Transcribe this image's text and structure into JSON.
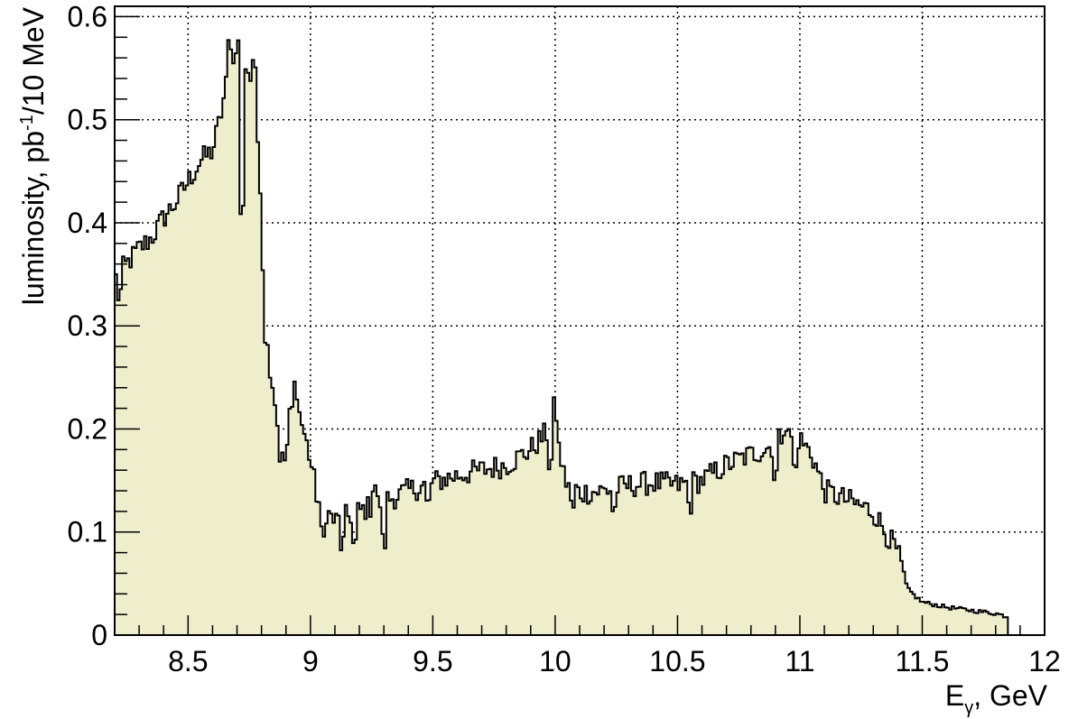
{
  "chart_data": {
    "type": "histogram",
    "xlabel": "E",
    "xlabel_sub": "γ",
    "xlabel_suffix": ", GeV",
    "ylabel_pre": "luminosity, pb",
    "ylabel_sup": "-1",
    "ylabel_post": "/10 MeV",
    "xlim": [
      8.2,
      12.0
    ],
    "ylim": [
      0,
      0.61
    ],
    "grid": true,
    "bin_width": 0.01,
    "fill_color": "#eeeecc",
    "line_color": "#000000",
    "x_ticks": [
      {
        "v": 8.5,
        "label": "8.5"
      },
      {
        "v": 9.0,
        "label": "9"
      },
      {
        "v": 9.5,
        "label": "9.5"
      },
      {
        "v": 10.0,
        "label": "10"
      },
      {
        "v": 10.5,
        "label": "10.5"
      },
      {
        "v": 11.0,
        "label": "11"
      },
      {
        "v": 11.5,
        "label": "11.5"
      },
      {
        "v": 12.0,
        "label": "12"
      }
    ],
    "y_ticks": [
      {
        "v": 0.0,
        "label": "0"
      },
      {
        "v": 0.1,
        "label": "0.1"
      },
      {
        "v": 0.2,
        "label": "0.2"
      },
      {
        "v": 0.3,
        "label": "0.3"
      },
      {
        "v": 0.4,
        "label": "0.4"
      },
      {
        "v": 0.5,
        "label": "0.5"
      },
      {
        "v": 0.6,
        "label": "0.6"
      }
    ],
    "shape": [
      [
        8.2,
        0.345
      ],
      [
        8.25,
        0.36
      ],
      [
        8.3,
        0.375
      ],
      [
        8.35,
        0.385
      ],
      [
        8.4,
        0.405
      ],
      [
        8.45,
        0.42
      ],
      [
        8.5,
        0.44
      ],
      [
        8.55,
        0.46
      ],
      [
        8.6,
        0.47
      ],
      [
        8.63,
        0.5
      ],
      [
        8.66,
        0.54
      ],
      [
        8.69,
        0.555
      ],
      [
        8.72,
        0.55
      ],
      [
        8.75,
        0.56
      ],
      [
        8.78,
        0.5
      ],
      [
        8.8,
        0.42
      ],
      [
        8.81,
        0.3
      ],
      [
        8.83,
        0.27
      ],
      [
        8.86,
        0.22
      ],
      [
        8.88,
        0.16
      ],
      [
        8.9,
        0.2
      ],
      [
        8.94,
        0.23
      ],
      [
        8.97,
        0.2
      ],
      [
        9.0,
        0.17
      ],
      [
        9.03,
        0.13
      ],
      [
        9.1,
        0.11
      ],
      [
        9.2,
        0.12
      ],
      [
        9.3,
        0.13
      ],
      [
        9.4,
        0.14
      ],
      [
        9.5,
        0.148
      ],
      [
        9.6,
        0.155
      ],
      [
        9.7,
        0.16
      ],
      [
        9.8,
        0.165
      ],
      [
        9.9,
        0.18
      ],
      [
        9.96,
        0.195
      ],
      [
        10.0,
        0.2
      ],
      [
        10.04,
        0.15
      ],
      [
        10.1,
        0.138
      ],
      [
        10.2,
        0.14
      ],
      [
        10.3,
        0.145
      ],
      [
        10.4,
        0.148
      ],
      [
        10.5,
        0.145
      ],
      [
        10.6,
        0.15
      ],
      [
        10.7,
        0.165
      ],
      [
        10.8,
        0.175
      ],
      [
        10.9,
        0.185
      ],
      [
        10.93,
        0.195
      ],
      [
        11.0,
        0.19
      ],
      [
        11.05,
        0.175
      ],
      [
        11.1,
        0.14
      ],
      [
        11.2,
        0.13
      ],
      [
        11.3,
        0.12
      ],
      [
        11.35,
        0.1
      ],
      [
        11.4,
        0.08
      ],
      [
        11.42,
        0.06
      ],
      [
        11.44,
        0.045
      ],
      [
        11.47,
        0.038
      ],
      [
        11.5,
        0.032
      ],
      [
        11.6,
        0.027
      ],
      [
        11.7,
        0.024
      ],
      [
        11.8,
        0.021
      ],
      [
        11.85,
        0.018
      ]
    ],
    "spikes": [
      [
        8.72,
        -0.14
      ],
      [
        8.77,
        0.03
      ],
      [
        8.75,
        -0.01
      ],
      [
        8.67,
        0.03
      ],
      [
        8.7,
        0.02
      ],
      [
        8.22,
        -0.02
      ],
      [
        8.9,
        -0.02
      ],
      [
        8.94,
        0.015
      ],
      [
        9.05,
        -0.03
      ],
      [
        9.13,
        -0.025
      ],
      [
        9.18,
        -0.03
      ],
      [
        9.26,
        0.02
      ],
      [
        9.3,
        -0.04
      ],
      [
        9.48,
        -0.02
      ],
      [
        9.98,
        -0.03
      ],
      [
        10.0,
        0.02
      ],
      [
        10.07,
        -0.02
      ],
      [
        10.24,
        -0.02
      ],
      [
        10.55,
        -0.02
      ],
      [
        10.9,
        -0.03
      ],
      [
        10.94,
        0.01
      ],
      [
        10.98,
        -0.03
      ]
    ]
  }
}
